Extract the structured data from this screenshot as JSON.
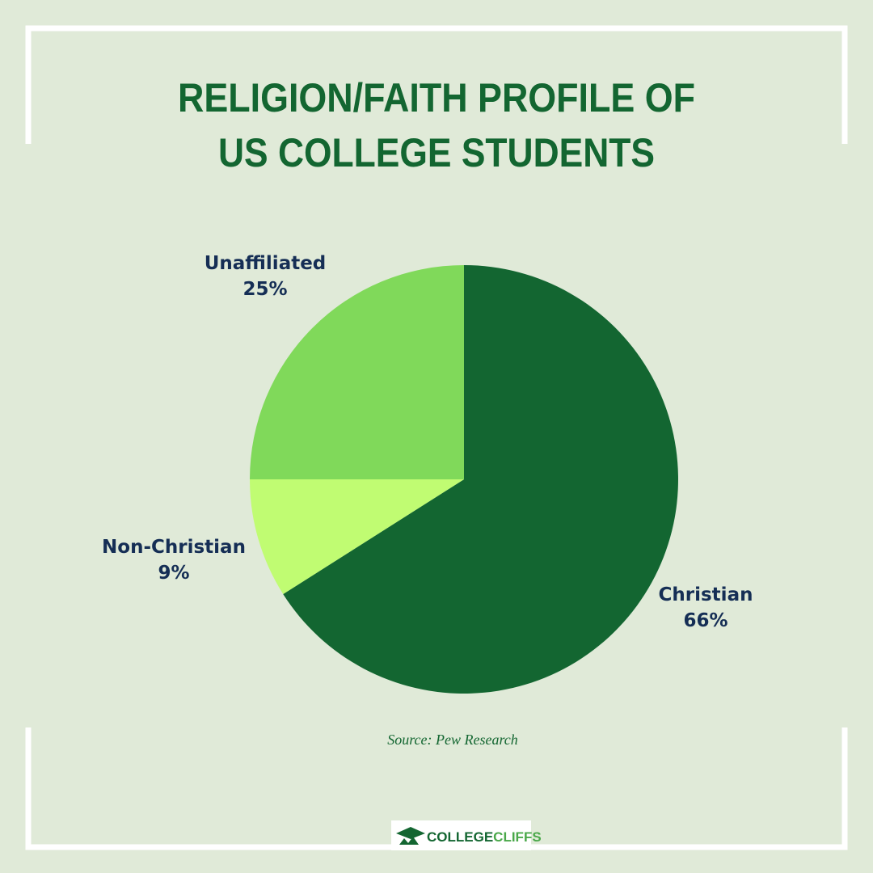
{
  "chart_data": {
    "type": "pie",
    "title": [
      "RELIGION/FAITH PROFILE OF",
      "US COLLEGE STUDENTS"
    ],
    "categories": [
      "Christian",
      "Non-Christian",
      "Unaffiliated"
    ],
    "values": [
      66,
      9,
      25
    ],
    "value_labels": [
      "66%",
      "9%",
      "25%"
    ],
    "colors": [
      "#136631",
      "#c0fc72",
      "#80d95a"
    ],
    "source": "Source: Pew Research",
    "brand": [
      "COLLEGE",
      "CLIFFS"
    ]
  }
}
